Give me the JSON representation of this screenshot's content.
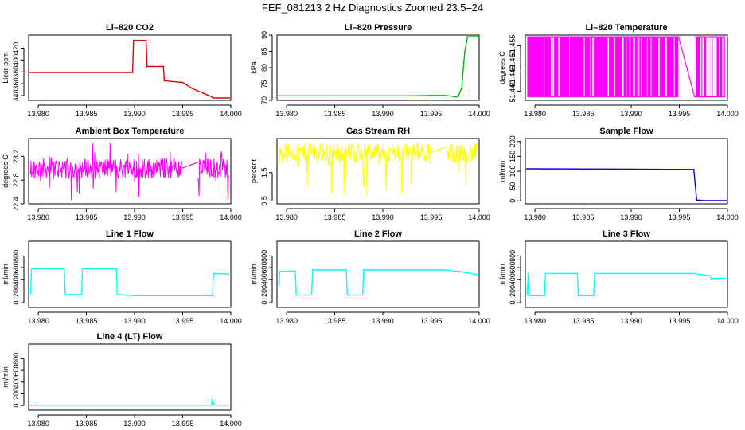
{
  "figure_title": "FEF_081213  2 Hz Diagnostics Zoomed 23.5–24",
  "chart_data": [
    {
      "type": "line",
      "title": "Li–820 CO2",
      "ylabel": "Licor ppm",
      "color": "#e00000",
      "xlim": [
        13.979,
        14.0
      ],
      "x_ticks": [
        13.98,
        13.985,
        13.99,
        13.995,
        14.0
      ],
      "x_tick_labels": [
        "13.980",
        "13.985",
        "13.990",
        "13.995",
        "14.000"
      ],
      "ylim": [
        332,
        442
      ],
      "y_ticks": [
        340,
        360,
        380,
        400,
        420
      ],
      "y_tick_labels": [
        "340",
        "360",
        "380",
        "400",
        "420"
      ],
      "x": [
        13.979,
        13.985,
        13.9898,
        13.9899,
        13.9912,
        13.9913,
        13.993,
        13.9931,
        13.995,
        13.996,
        13.998,
        13.9982,
        14.0
      ],
      "y": [
        379,
        379,
        379,
        433,
        433,
        389,
        389,
        365,
        362,
        352,
        338,
        336,
        336
      ]
    },
    {
      "type": "line",
      "title": "Li–820 Pressure",
      "ylabel": "kPa",
      "color": "#00bb00",
      "xlim": [
        13.979,
        14.0
      ],
      "x_ticks": [
        13.98,
        13.985,
        13.99,
        13.995,
        14.0
      ],
      "x_tick_labels": [
        "13.980",
        "13.985",
        "13.990",
        "13.995",
        "14.000"
      ],
      "ylim": [
        70,
        90
      ],
      "y_ticks": [
        70,
        75,
        80,
        85,
        90
      ],
      "y_tick_labels": [
        "70",
        "75",
        "80",
        "85",
        "90"
      ],
      "x": [
        13.979,
        13.993,
        13.995,
        13.9965,
        13.9978,
        13.9982,
        13.9985,
        13.9988,
        14.0
      ],
      "y": [
        71.4,
        71.4,
        71.5,
        71.5,
        71.0,
        74,
        85,
        89.5,
        89.5
      ]
    },
    {
      "type": "line",
      "title": "Li–820 Temperature",
      "ylabel": "degrees C",
      "color": "#ff00ff",
      "xlim": [
        13.979,
        14.0
      ],
      "x_ticks": [
        13.98,
        13.985,
        13.99,
        13.995,
        14.0
      ],
      "x_tick_labels": [
        "13.980",
        "13.985",
        "13.990",
        "13.995",
        "14.000"
      ],
      "ylim": [
        51.437,
        51.4585
      ],
      "y_ticks": [
        51.44,
        51.445,
        51.45,
        51.455
      ],
      "y_tick_labels": [
        "51.440",
        "51.445",
        "51.450",
        "51.455"
      ],
      "segments": [
        [
          13.9792,
          13.9949
        ],
        [
          13.9966,
          13.9998
        ]
      ],
      "values": [
        51.438,
        51.4581
      ]
    },
    {
      "type": "line",
      "title": "Ambient Box Temperature",
      "ylabel": "degrees C",
      "color": "#ff00ff",
      "xlim": [
        13.979,
        14.0
      ],
      "x_ticks": [
        13.98,
        13.985,
        13.99,
        13.995,
        14.0
      ],
      "x_tick_labels": [
        "13.980",
        "13.985",
        "13.990",
        "13.995",
        "14.000"
      ],
      "ylim": [
        22.4,
        23.5
      ],
      "y_ticks": [
        22.4,
        22.8,
        23.2
      ],
      "y_tick_labels": [
        "22.4",
        "22.8",
        "23.2"
      ],
      "segments": [
        [
          13.9792,
          13.9949
        ],
        [
          13.9966,
          13.9998
        ]
      ],
      "baseline": 23.0,
      "range": [
        22.45,
        23.45
      ]
    },
    {
      "type": "line",
      "title": "Gas Stream RH",
      "ylabel": "percent",
      "color": "#ffff00",
      "xlim": [
        13.979,
        14.0
      ],
      "x_ticks": [
        13.98,
        13.985,
        13.99,
        13.995,
        14.0
      ],
      "x_tick_labels": [
        "13.980",
        "13.985",
        "13.990",
        "13.995",
        "14.000"
      ],
      "ylim": [
        0.4,
        2.7
      ],
      "y_ticks": [
        0.5,
        1.5
      ],
      "y_tick_labels": [
        "0.5",
        "1.5"
      ],
      "segments": [
        [
          13.9792,
          13.9949
        ],
        [
          13.9966,
          13.9998
        ]
      ],
      "baseline": 2.2,
      "range": [
        0.5,
        2.55
      ]
    },
    {
      "type": "line",
      "title": "Sample Flow",
      "ylabel": "ml/min",
      "color": "#0000dd",
      "xlim": [
        13.979,
        14.0
      ],
      "x_ticks": [
        13.98,
        13.985,
        13.99,
        13.995,
        14.0
      ],
      "x_tick_labels": [
        "13.980",
        "13.985",
        "13.990",
        "13.995",
        "14.000"
      ],
      "ylim": [
        -10,
        210
      ],
      "y_ticks": [
        0,
        50,
        100,
        150,
        200
      ],
      "y_tick_labels": [
        "0",
        "50",
        "100",
        "150",
        "200"
      ],
      "x": [
        13.979,
        13.99,
        13.9955,
        13.9965,
        13.9968,
        13.9975,
        14.0
      ],
      "y": [
        108,
        107,
        106,
        106,
        3,
        1,
        1
      ]
    },
    {
      "type": "line",
      "title": "Line 1 Flow",
      "ylabel": "ml/min",
      "color": "#00ffff",
      "xlim": [
        13.979,
        14.0
      ],
      "x_ticks": [
        13.98,
        13.985,
        13.99,
        13.995,
        14.0
      ],
      "x_tick_labels": [
        "13.980",
        "13.985",
        "13.990",
        "13.995",
        "14.000"
      ],
      "ylim": [
        -80,
        1050
      ],
      "y_ticks": [
        0,
        200,
        400,
        600,
        800
      ],
      "y_tick_labels": [
        "0",
        "200",
        "400",
        "600",
        "800"
      ],
      "x": [
        13.9792,
        13.9793,
        13.9827,
        13.9828,
        13.9845,
        13.9846,
        13.9881,
        13.9882,
        13.99,
        13.9981,
        13.9982,
        13.9998
      ],
      "y": [
        150,
        580,
        580,
        140,
        140,
        580,
        580,
        140,
        120,
        120,
        500,
        490
      ]
    },
    {
      "type": "line",
      "title": "Line 2 Flow",
      "ylabel": "ml/min",
      "color": "#00ffff",
      "xlim": [
        13.979,
        14.0
      ],
      "x_ticks": [
        13.98,
        13.985,
        13.99,
        13.995,
        14.0
      ],
      "x_tick_labels": [
        "13.980",
        "13.985",
        "13.990",
        "13.995",
        "14.000"
      ],
      "ylim": [
        -80,
        1050
      ],
      "y_ticks": [
        0,
        200,
        400,
        600,
        800
      ],
      "y_tick_labels": [
        "0",
        "200",
        "400",
        "600",
        "800"
      ],
      "x": [
        13.9792,
        13.9793,
        13.9809,
        13.981,
        13.9826,
        13.9827,
        13.9862,
        13.9863,
        13.9879,
        13.988,
        13.9965,
        13.9981,
        13.9998
      ],
      "y": [
        300,
        540,
        540,
        130,
        130,
        560,
        560,
        130,
        130,
        560,
        560,
        530,
        480
      ]
    },
    {
      "type": "line",
      "title": "Line 3 Flow",
      "ylabel": "ml/min",
      "color": "#00ffff",
      "xlim": [
        13.979,
        14.0
      ],
      "x_ticks": [
        13.98,
        13.985,
        13.99,
        13.995,
        14.0
      ],
      "x_tick_labels": [
        "13.980",
        "13.985",
        "13.990",
        "13.995",
        "14.000"
      ],
      "ylim": [
        -80,
        1050
      ],
      "y_ticks": [
        0,
        200,
        400,
        600,
        800
      ],
      "y_tick_labels": [
        "0",
        "200",
        "400",
        "600",
        "800"
      ],
      "x": [
        13.9792,
        13.9793,
        13.9794,
        13.981,
        13.9811,
        13.9844,
        13.9845,
        13.9861,
        13.9862,
        13.9965,
        13.9982,
        13.9983,
        13.9998
      ],
      "y": [
        140,
        500,
        120,
        120,
        500,
        500,
        120,
        120,
        500,
        500,
        460,
        410,
        420
      ]
    },
    {
      "type": "line",
      "title": "Line 4 (LT) Flow",
      "ylabel": "ml/min",
      "color": "#00ffff",
      "xlim": [
        13.979,
        14.0
      ],
      "x_ticks": [
        13.98,
        13.985,
        13.99,
        13.995,
        14.0
      ],
      "x_tick_labels": [
        "13.980",
        "13.985",
        "13.990",
        "13.995",
        "14.000"
      ],
      "ylim": [
        -80,
        1050
      ],
      "y_ticks": [
        0,
        200,
        400,
        600,
        800
      ],
      "y_tick_labels": [
        "0",
        "200",
        "400",
        "600",
        "800"
      ],
      "x": [
        13.9792,
        13.998,
        13.9981,
        13.9982,
        13.9983,
        13.9998
      ],
      "y": [
        5,
        5,
        110,
        30,
        5,
        5
      ]
    }
  ]
}
